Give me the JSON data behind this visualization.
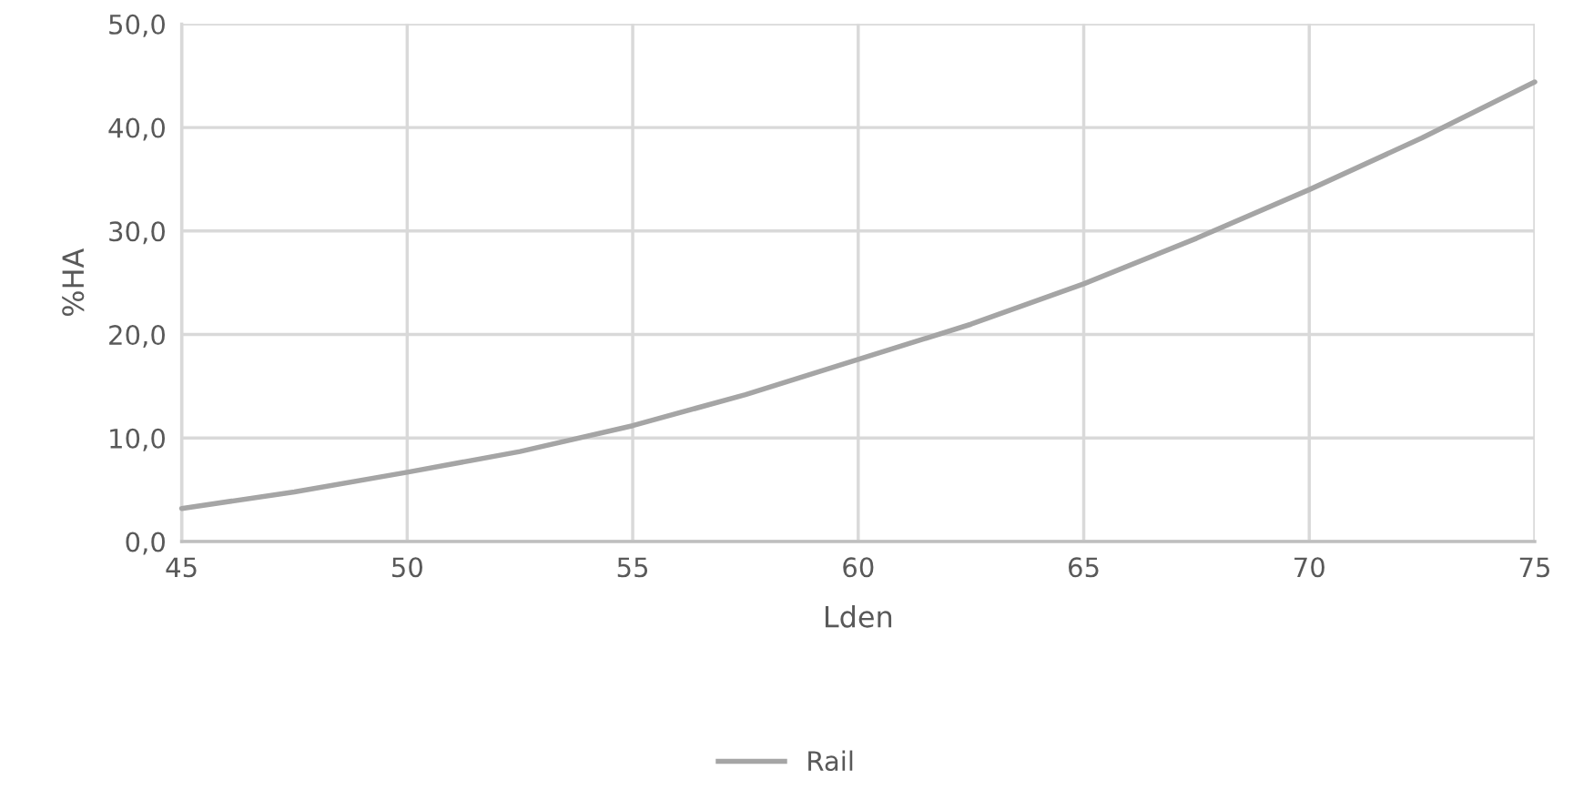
{
  "chart_data": {
    "type": "line",
    "xlabel": "Lden",
    "ylabel": "%HA",
    "x": [
      45,
      47.5,
      50,
      52.5,
      55,
      57.5,
      60,
      62.5,
      65,
      67.5,
      70,
      72.5,
      75
    ],
    "series": [
      {
        "name": "Rail",
        "color": "#a5a5a5",
        "values": [
          3.2,
          4.8,
          6.7,
          8.7,
          11.2,
          14.2,
          17.6,
          21.0,
          24.9,
          29.3,
          34.0,
          39.0,
          44.4
        ]
      }
    ],
    "xlim": [
      45,
      75
    ],
    "xticks": [
      45,
      50,
      55,
      60,
      65,
      70,
      75
    ],
    "ylim": [
      0,
      50
    ],
    "yticks": [
      {
        "value": 0,
        "label": "0,0"
      },
      {
        "value": 10,
        "label": "10,0"
      },
      {
        "value": 20,
        "label": "20,0"
      },
      {
        "value": 30,
        "label": "30,0"
      },
      {
        "value": 40,
        "label": "40,0"
      },
      {
        "value": 50,
        "label": "50,0"
      }
    ],
    "grid": true,
    "legend": "bottom",
    "marker": "none",
    "line_style": "solid"
  }
}
